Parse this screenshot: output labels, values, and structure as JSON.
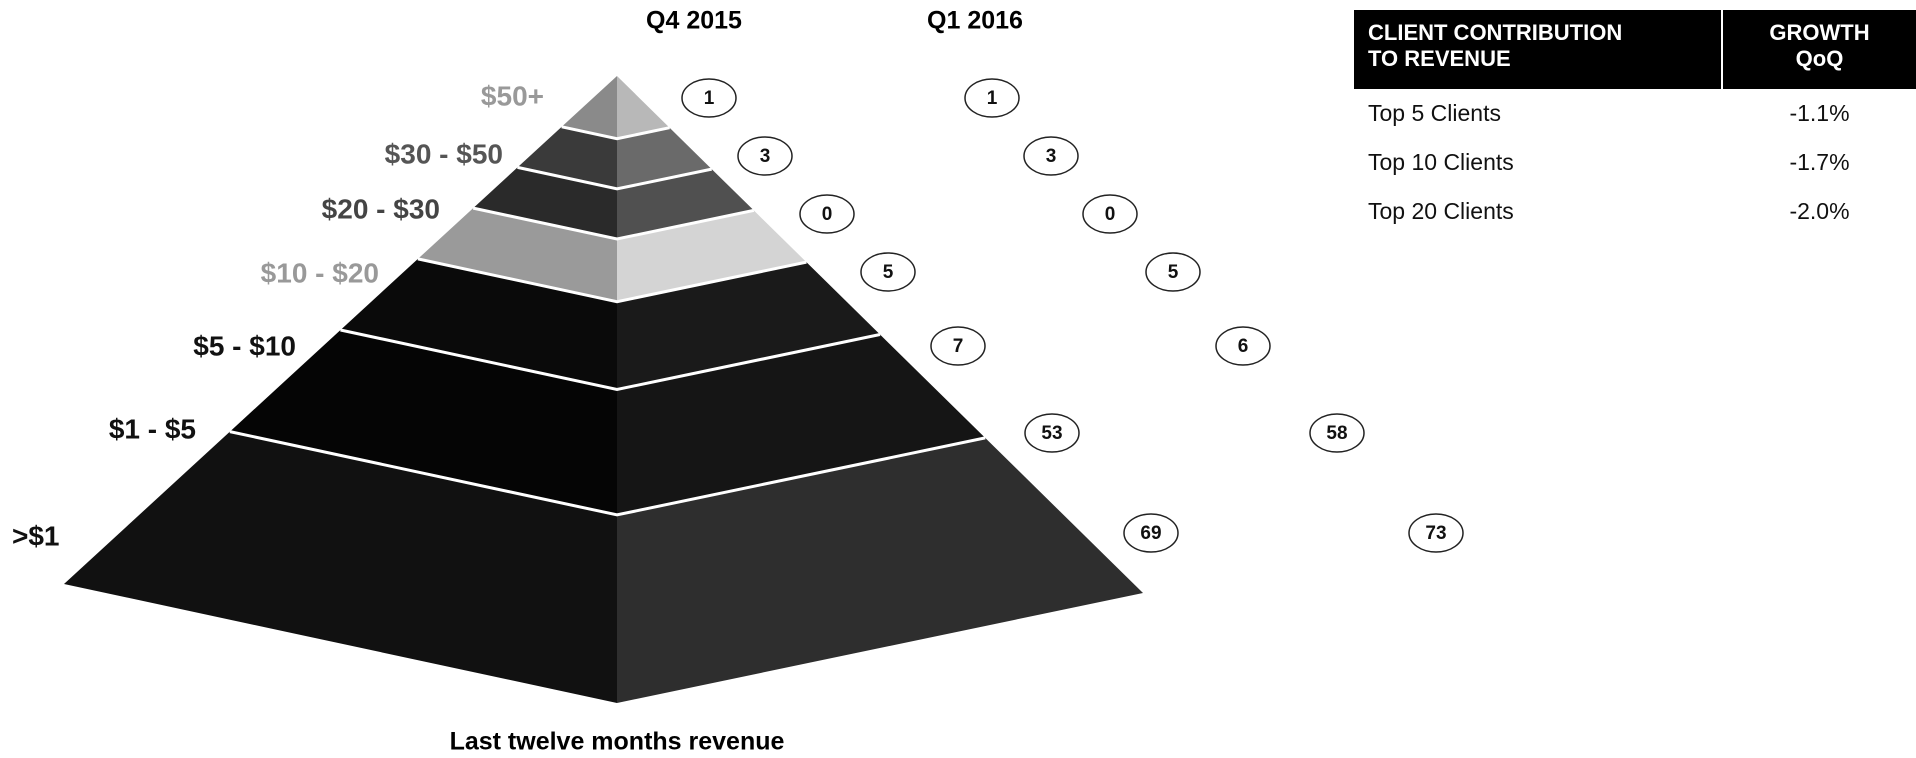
{
  "header": {
    "q4": "Q4 2015",
    "q1": "Q1 2016"
  },
  "tiers": [
    {
      "label": "$50+",
      "q4": 1,
      "q1": 1
    },
    {
      "label": "$30 - $50",
      "q4": 3,
      "q1": 3
    },
    {
      "label": "$20 - $30",
      "q4": 0,
      "q1": 0
    },
    {
      "label": "$10 - $20",
      "q4": 5,
      "q1": 5
    },
    {
      "label": "$5 - $10",
      "q4": 7,
      "q1": 6
    },
    {
      "label": "$1 - $5",
      "q4": 53,
      "q1": 58
    },
    {
      "label": ">$1",
      "q4": 69,
      "q1": 73
    }
  ],
  "footer": "Last twelve months revenue",
  "table": {
    "headers": [
      [
        "CLIENT CONTRIBUTION",
        "TO REVENUE"
      ],
      [
        "GROWTH",
        "QoQ"
      ]
    ],
    "rows": [
      [
        "Top 5 Clients",
        "-1.1%"
      ],
      [
        "Top 10 Clients",
        "-1.7%"
      ],
      [
        "Top 20 Clients",
        "-2.0%"
      ]
    ]
  }
}
